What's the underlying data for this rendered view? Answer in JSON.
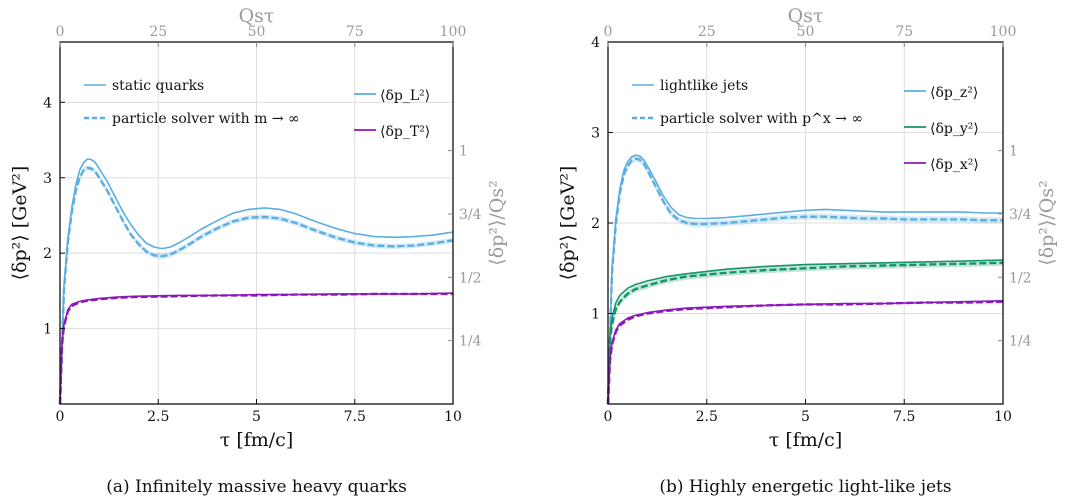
{
  "chart_data": [
    {
      "type": "line",
      "caption": "(a) Infinitely massive heavy quarks",
      "xlabel": "τ [fm/c]",
      "ylabel": "⟨δp²⟩ [GeV²]",
      "top_xlabel": "Qsτ",
      "right_ylabel": "⟨δp²⟩/Qs²",
      "xlim": [
        0,
        10
      ],
      "ylim": [
        0,
        4.8
      ],
      "x_ticks": [
        "0",
        "2.5",
        "5",
        "7.5",
        "10"
      ],
      "y_ticks": [
        "1",
        "2",
        "3",
        "4"
      ],
      "top_ticks": [
        "0",
        "25",
        "50",
        "75",
        "100"
      ],
      "right_ticks": [
        "1/4",
        "1/2",
        "3/4",
        "1"
      ],
      "grid": true,
      "legend_styles": [
        {
          "label": "static quarks",
          "dash": false
        },
        {
          "label": "particle solver with m → ∞",
          "dash": true
        }
      ],
      "legend_colors": [
        {
          "label": "⟨δp_L²⟩",
          "color": "#5aaee0"
        },
        {
          "label": "⟨δp_T²⟩",
          "color": "#8b18bd"
        }
      ],
      "series": [
        {
          "name": "⟨δp_L²⟩",
          "color": "#5aaee0",
          "style": "solid",
          "x": [
            0,
            0.1,
            0.2,
            0.3,
            0.4,
            0.5,
            0.6,
            0.7,
            0.8,
            0.9,
            1.0,
            1.2,
            1.4,
            1.6,
            1.8,
            2.0,
            2.2,
            2.4,
            2.6,
            2.8,
            3.0,
            3.3,
            3.6,
            4.0,
            4.4,
            4.8,
            5.2,
            5.6,
            6.0,
            6.5,
            7.0,
            7.5,
            8.0,
            8.5,
            9.0,
            9.5,
            10
          ],
          "y": [
            0,
            1.55,
            2.2,
            2.6,
            2.9,
            3.1,
            3.2,
            3.25,
            3.24,
            3.2,
            3.12,
            2.95,
            2.75,
            2.55,
            2.38,
            2.24,
            2.13,
            2.08,
            2.06,
            2.08,
            2.13,
            2.22,
            2.32,
            2.43,
            2.53,
            2.58,
            2.6,
            2.58,
            2.52,
            2.42,
            2.33,
            2.26,
            2.22,
            2.21,
            2.22,
            2.24,
            2.28
          ]
        },
        {
          "name": "⟨δp_L²⟩",
          "color": "#5aaee0",
          "style": "dashed",
          "band": 0.035,
          "x": [
            0,
            0.1,
            0.2,
            0.3,
            0.4,
            0.5,
            0.6,
            0.7,
            0.8,
            0.9,
            1.0,
            1.2,
            1.4,
            1.6,
            1.8,
            2.0,
            2.2,
            2.4,
            2.6,
            2.8,
            3.0,
            3.3,
            3.6,
            4.0,
            4.4,
            4.8,
            5.2,
            5.6,
            6.0,
            6.5,
            7.0,
            7.5,
            8.0,
            8.5,
            9.0,
            9.5,
            10
          ],
          "y": [
            0,
            1.5,
            2.15,
            2.55,
            2.82,
            3.0,
            3.1,
            3.13,
            3.12,
            3.08,
            3.0,
            2.83,
            2.63,
            2.43,
            2.25,
            2.12,
            2.02,
            1.97,
            1.96,
            1.98,
            2.03,
            2.12,
            2.22,
            2.33,
            2.42,
            2.47,
            2.48,
            2.46,
            2.4,
            2.3,
            2.21,
            2.14,
            2.1,
            2.09,
            2.1,
            2.13,
            2.17
          ]
        },
        {
          "name": "⟨δp_T²⟩",
          "color": "#8b18bd",
          "style": "solid",
          "x": [
            0,
            0.05,
            0.1,
            0.2,
            0.3,
            0.5,
            0.7,
            1.0,
            1.5,
            2.0,
            3.0,
            4.0,
            5.0,
            6.0,
            7.0,
            8.0,
            9.0,
            10
          ],
          "y": [
            0,
            0.8,
            1.05,
            1.25,
            1.32,
            1.36,
            1.38,
            1.4,
            1.42,
            1.43,
            1.44,
            1.44,
            1.45,
            1.45,
            1.46,
            1.46,
            1.46,
            1.47
          ]
        },
        {
          "name": "⟨δp_T²⟩",
          "color": "#8b18bd",
          "style": "dashed",
          "x": [
            0,
            0.05,
            0.1,
            0.2,
            0.3,
            0.5,
            0.7,
            1.0,
            1.5,
            2.0,
            3.0,
            4.0,
            5.0,
            6.0,
            7.0,
            8.0,
            9.0,
            10
          ],
          "y": [
            0,
            0.78,
            1.03,
            1.23,
            1.3,
            1.35,
            1.37,
            1.39,
            1.41,
            1.42,
            1.43,
            1.44,
            1.44,
            1.45,
            1.45,
            1.46,
            1.46,
            1.46
          ]
        }
      ]
    },
    {
      "type": "line",
      "caption": "(b) Highly energetic light-like jets",
      "xlabel": "τ [fm/c]",
      "ylabel": "⟨δp²⟩ [GeV²]",
      "top_xlabel": "Qsτ",
      "right_ylabel": "⟨δp²⟩/Qs²",
      "xlim": [
        0,
        10
      ],
      "ylim": [
        0,
        4
      ],
      "x_ticks": [
        "0",
        "2.5",
        "5",
        "7.5",
        "10"
      ],
      "y_ticks": [
        "1",
        "2",
        "3",
        "4"
      ],
      "top_ticks": [
        "0",
        "25",
        "50",
        "75",
        "100"
      ],
      "right_ticks": [
        "1/4",
        "1/2",
        "3/4",
        "1"
      ],
      "grid": true,
      "legend_styles": [
        {
          "label": "lightlike jets",
          "dash": false
        },
        {
          "label": "particle solver with p^x → ∞",
          "dash": true
        }
      ],
      "legend_colors": [
        {
          "label": "⟨δp_z²⟩",
          "color": "#5aaee0"
        },
        {
          "label": "⟨δp_y²⟩",
          "color": "#14946a"
        },
        {
          "label": "⟨δp_x²⟩",
          "color": "#8b18bd"
        }
      ],
      "series": [
        {
          "name": "⟨δp_z²⟩",
          "color": "#5aaee0",
          "style": "solid",
          "x": [
            0,
            0.1,
            0.2,
            0.3,
            0.4,
            0.5,
            0.6,
            0.7,
            0.8,
            0.9,
            1.0,
            1.2,
            1.4,
            1.6,
            1.8,
            2.0,
            2.2,
            2.5,
            3.0,
            3.5,
            4.0,
            4.5,
            5.0,
            5.5,
            6.0,
            6.5,
            7.0,
            7.5,
            8.0,
            8.5,
            9.0,
            9.5,
            10
          ],
          "y": [
            0,
            1.5,
            2.05,
            2.38,
            2.58,
            2.68,
            2.73,
            2.75,
            2.74,
            2.7,
            2.63,
            2.47,
            2.3,
            2.17,
            2.09,
            2.06,
            2.05,
            2.05,
            2.06,
            2.08,
            2.1,
            2.12,
            2.14,
            2.15,
            2.14,
            2.13,
            2.12,
            2.12,
            2.12,
            2.12,
            2.12,
            2.11,
            2.11
          ]
        },
        {
          "name": "⟨δp_z²⟩",
          "color": "#5aaee0",
          "style": "dashed",
          "band": 0.035,
          "x": [
            0,
            0.1,
            0.2,
            0.3,
            0.4,
            0.5,
            0.6,
            0.7,
            0.8,
            0.9,
            1.0,
            1.2,
            1.4,
            1.6,
            1.8,
            2.0,
            2.2,
            2.5,
            3.0,
            3.5,
            4.0,
            4.5,
            5.0,
            5.5,
            6.0,
            6.5,
            7.0,
            7.5,
            8.0,
            8.5,
            9.0,
            9.5,
            10
          ],
          "y": [
            0,
            1.45,
            2.0,
            2.33,
            2.53,
            2.63,
            2.69,
            2.71,
            2.7,
            2.66,
            2.58,
            2.41,
            2.24,
            2.1,
            2.03,
            2.0,
            1.99,
            1.99,
            2.0,
            2.02,
            2.04,
            2.06,
            2.07,
            2.07,
            2.06,
            2.05,
            2.05,
            2.04,
            2.04,
            2.04,
            2.04,
            2.03,
            2.03
          ]
        },
        {
          "name": "⟨δp_y²⟩",
          "color": "#14946a",
          "style": "solid",
          "x": [
            0,
            0.05,
            0.1,
            0.2,
            0.3,
            0.5,
            0.7,
            1.0,
            1.5,
            2.0,
            3.0,
            4.0,
            5.0,
            6.0,
            7.0,
            8.0,
            9.0,
            10
          ],
          "y": [
            0,
            0.75,
            0.95,
            1.12,
            1.2,
            1.28,
            1.32,
            1.36,
            1.41,
            1.44,
            1.49,
            1.52,
            1.54,
            1.55,
            1.56,
            1.57,
            1.58,
            1.59
          ]
        },
        {
          "name": "⟨δp_y²⟩",
          "color": "#14946a",
          "style": "dashed",
          "band": 0.035,
          "x": [
            0,
            0.05,
            0.1,
            0.2,
            0.3,
            0.5,
            0.7,
            1.0,
            1.5,
            2.0,
            3.0,
            4.0,
            5.0,
            6.0,
            7.0,
            8.0,
            9.0,
            10
          ],
          "y": [
            0,
            0.7,
            0.88,
            1.05,
            1.13,
            1.22,
            1.27,
            1.31,
            1.37,
            1.41,
            1.45,
            1.48,
            1.5,
            1.52,
            1.53,
            1.54,
            1.55,
            1.56
          ]
        },
        {
          "name": "⟨δp_x²⟩",
          "color": "#8b18bd",
          "style": "solid",
          "x": [
            0,
            0.05,
            0.1,
            0.2,
            0.3,
            0.5,
            0.7,
            1.0,
            1.5,
            2.0,
            3.0,
            4.0,
            5.0,
            6.0,
            7.0,
            8.0,
            9.0,
            10
          ],
          "y": [
            0,
            0.5,
            0.68,
            0.82,
            0.89,
            0.95,
            0.98,
            1.01,
            1.04,
            1.06,
            1.08,
            1.09,
            1.1,
            1.11,
            1.11,
            1.12,
            1.13,
            1.14
          ]
        },
        {
          "name": "⟨δp_x²⟩",
          "color": "#8b18bd",
          "style": "dashed",
          "x": [
            0,
            0.05,
            0.1,
            0.2,
            0.3,
            0.5,
            0.7,
            1.0,
            1.5,
            2.0,
            3.0,
            4.0,
            5.0,
            6.0,
            7.0,
            8.0,
            9.0,
            10
          ],
          "y": [
            0,
            0.48,
            0.66,
            0.8,
            0.87,
            0.93,
            0.97,
            1.0,
            1.03,
            1.05,
            1.07,
            1.09,
            1.1,
            1.1,
            1.11,
            1.12,
            1.12,
            1.13
          ]
        }
      ]
    }
  ]
}
